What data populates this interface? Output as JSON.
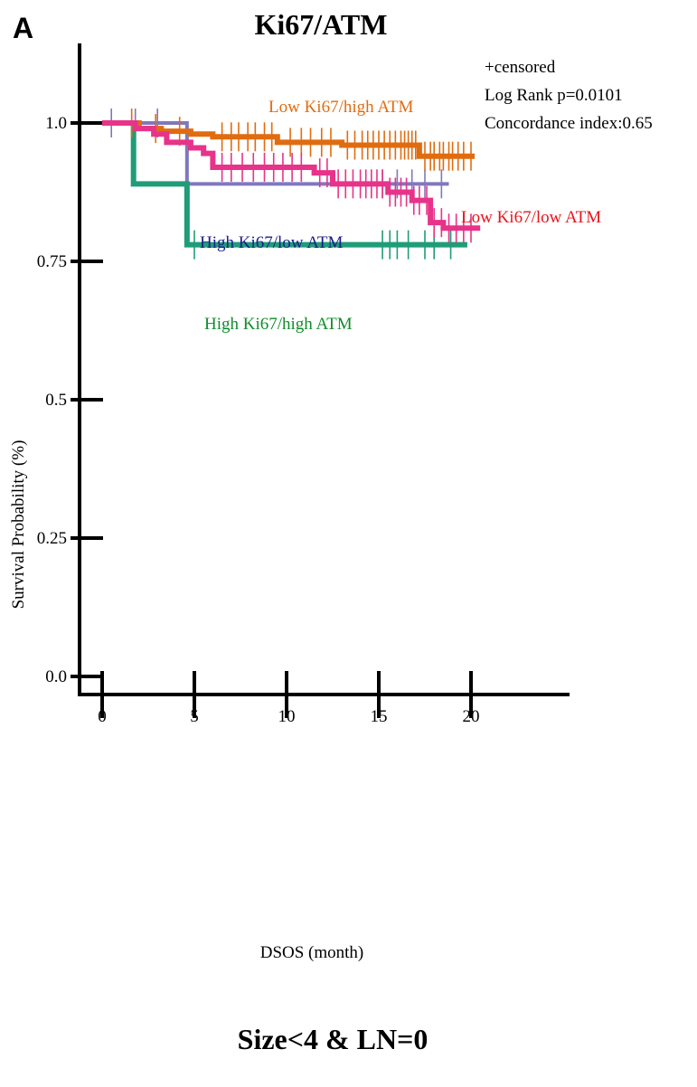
{
  "panel_label": "A",
  "subtitle": "Size<4 & LN=0",
  "chart_data": {
    "type": "line",
    "step": true,
    "title": "Ki67/ATM",
    "xlabel": "DSOS (month)",
    "ylabel": "Survival Probability (%)",
    "xlim": [
      -1,
      25.5
    ],
    "ylim": [
      -0.05,
      1.1
    ],
    "x_ticks": [
      0,
      5,
      10,
      15,
      20
    ],
    "x_tick_labels": [
      "0",
      "5",
      "10",
      "15",
      "20"
    ],
    "y_ticks": [
      0.0,
      0.25,
      0.5,
      0.75,
      1.0
    ],
    "y_tick_labels": [
      "0.0",
      "0.25",
      "0.5",
      "0.75",
      "1.0"
    ],
    "grid": false,
    "annotations": [
      "+censored",
      "Log Rank p=0.0101",
      "Concordance index:0.65"
    ],
    "series": [
      {
        "name": "Low Ki67/high ATM",
        "color": "#e06c10",
        "label_color": "#e06c10",
        "x": [
          0,
          2.0,
          3.2,
          4.8,
          6.0,
          9.5,
          13.0,
          17.2
        ],
        "y": [
          1.0,
          0.99,
          0.985,
          0.98,
          0.975,
          0.965,
          0.96,
          0.94
        ],
        "x_end": 20.2,
        "censored": [
          1.6,
          2.9,
          4.2,
          6.5,
          7.0,
          7.4,
          7.9,
          8.3,
          8.8,
          9.2,
          10.2,
          10.8,
          11.3,
          11.9,
          12.4,
          13.3,
          13.7,
          14.1,
          14.4,
          14.7,
          15.0,
          15.3,
          15.6,
          15.9,
          16.2,
          16.4,
          16.6,
          16.8,
          17.0,
          17.5,
          17.8,
          18.0,
          18.3,
          18.5,
          18.8,
          19.0,
          19.3,
          19.6,
          20.0
        ]
      },
      {
        "name": "High Ki67/low ATM",
        "color": "#7f78bd",
        "label_color": "#1d1d8c",
        "x": [
          0,
          4.6
        ],
        "y": [
          1.0,
          0.89
        ],
        "x_end": 18.8,
        "censored": [
          0.5,
          1.8,
          3.0,
          15.2,
          16.0,
          16.8,
          17.5,
          18.4
        ]
      },
      {
        "name": "Low Ki67/low ATM",
        "color": "#e8338a",
        "label_color": "#e8141c",
        "x": [
          0,
          1.8,
          2.8,
          3.5,
          4.8,
          5.5,
          6.0,
          11.5,
          12.5,
          15.5,
          16.8,
          17.8,
          18.5
        ],
        "y": [
          1.0,
          0.99,
          0.98,
          0.965,
          0.955,
          0.945,
          0.92,
          0.91,
          0.89,
          0.875,
          0.86,
          0.82,
          0.81
        ],
        "x_end": 20.5,
        "censored": [
          6.5,
          7.0,
          7.6,
          8.2,
          8.8,
          9.3,
          9.8,
          10.3,
          10.8,
          11.8,
          12.2,
          12.8,
          13.2,
          13.6,
          14.0,
          14.3,
          14.6,
          14.9,
          15.2,
          15.6,
          15.9,
          16.2,
          16.5,
          16.9,
          17.2,
          17.6,
          18.0,
          18.4,
          18.8,
          19.2,
          19.6,
          20.0
        ]
      },
      {
        "name": "High Ki67/high ATM",
        "color": "#1f9c78",
        "label_color": "#0f8c2a",
        "x": [
          0,
          1.7,
          4.6
        ],
        "y": [
          1.0,
          0.89,
          0.78
        ],
        "x_end": 19.8,
        "censored": [
          5.0,
          15.2,
          15.6,
          16.0,
          16.6,
          17.5,
          18.0,
          18.9
        ]
      }
    ]
  }
}
